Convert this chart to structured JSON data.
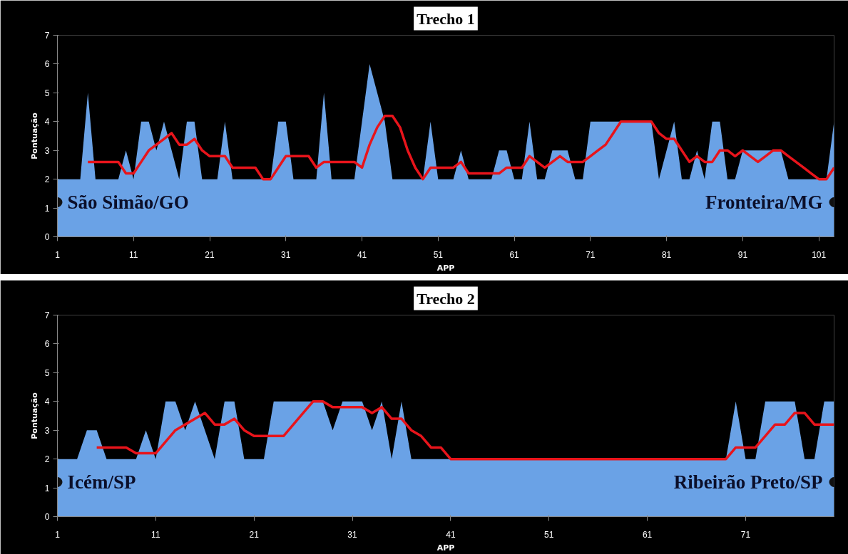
{
  "chart_data": [
    {
      "type": "area",
      "title": "Trecho 1",
      "xlabel": "APP",
      "ylabel": "Pontuação",
      "xlim": [
        1,
        103
      ],
      "xticks": [
        1,
        11,
        21,
        31,
        41,
        51,
        61,
        71,
        81,
        91,
        101
      ],
      "ylim": [
        0,
        7
      ],
      "yticks": [
        0,
        1,
        2,
        3,
        4,
        5,
        6,
        7
      ],
      "grid": false,
      "x": [
        1,
        2,
        3,
        4,
        5,
        6,
        7,
        8,
        9,
        10,
        11,
        12,
        13,
        14,
        15,
        16,
        17,
        18,
        19,
        20,
        21,
        22,
        23,
        24,
        25,
        26,
        27,
        28,
        29,
        30,
        31,
        32,
        33,
        34,
        35,
        36,
        37,
        38,
        39,
        40,
        41,
        42,
        43,
        44,
        45,
        46,
        47,
        48,
        49,
        50,
        51,
        52,
        53,
        54,
        55,
        56,
        57,
        58,
        59,
        60,
        61,
        62,
        63,
        64,
        65,
        66,
        67,
        68,
        69,
        70,
        71,
        72,
        73,
        74,
        75,
        76,
        77,
        78,
        79,
        80,
        81,
        82,
        83,
        84,
        85,
        86,
        87,
        88,
        89,
        90,
        91,
        92,
        93,
        94,
        95,
        96,
        97,
        98,
        99,
        100,
        101,
        102,
        103
      ],
      "series": [
        {
          "color": "#6aa2e6",
          "values": [
            2,
            2,
            2,
            2,
            5,
            2,
            2,
            2,
            2,
            3,
            2,
            4,
            4,
            3,
            4,
            3,
            2,
            4,
            4,
            2,
            2,
            2,
            4,
            2,
            2,
            2,
            2,
            2,
            2,
            4,
            4,
            2,
            2,
            2,
            2,
            5,
            2,
            2,
            2,
            2,
            4,
            6,
            5,
            4,
            2,
            2,
            2,
            2,
            2,
            4,
            2,
            2,
            2,
            3,
            2,
            2,
            2,
            2,
            3,
            3,
            2,
            2,
            4,
            2,
            2,
            3,
            3,
            3,
            2,
            2,
            4,
            4,
            4,
            4,
            4,
            4,
            4,
            4,
            4,
            2,
            3,
            4,
            2,
            2,
            3,
            2,
            4,
            4,
            2,
            2,
            3,
            3,
            3,
            3,
            3,
            3,
            2,
            2,
            2,
            2,
            2,
            2,
            4
          ]
        },
        {
          "type": "line",
          "color": "#e8141b",
          "values": [
            null,
            null,
            null,
            null,
            2.6,
            2.6,
            2.6,
            2.6,
            2.6,
            2.2,
            2.2,
            2.6,
            3.0,
            3.2,
            3.4,
            3.6,
            3.2,
            3.2,
            3.4,
            3.0,
            2.8,
            2.8,
            2.8,
            2.4,
            2.4,
            2.4,
            2.4,
            2.0,
            2.0,
            2.4,
            2.8,
            2.8,
            2.8,
            2.8,
            2.4,
            2.6,
            2.6,
            2.6,
            2.6,
            2.6,
            2.4,
            3.2,
            3.8,
            4.2,
            4.2,
            3.8,
            3.0,
            2.4,
            2.0,
            2.4,
            2.4,
            2.4,
            2.4,
            2.6,
            2.2,
            2.2,
            2.2,
            2.2,
            2.2,
            2.4,
            2.4,
            2.4,
            2.8,
            2.6,
            2.4,
            2.6,
            2.8,
            2.6,
            2.6,
            2.6,
            2.8,
            3.0,
            3.2,
            3.6,
            4.0,
            4.0,
            4.0,
            4.0,
            4.0,
            3.6,
            3.4,
            3.4,
            3.0,
            2.6,
            2.8,
            2.6,
            2.6,
            3.0,
            3.0,
            2.8,
            3.0,
            2.8,
            2.6,
            2.8,
            3.0,
            3.0,
            2.8,
            2.6,
            2.4,
            2.2,
            2.0,
            2.0,
            2.4
          ]
        }
      ],
      "annotations": [
        {
          "text": "São Simão/GO",
          "x": 1,
          "y": 1.2
        },
        {
          "text": "Fronteira/MG",
          "x": 103,
          "y": 1.2
        }
      ]
    },
    {
      "type": "area",
      "title": "Trecho 2",
      "xlabel": "APP",
      "ylabel": "Pontuação",
      "xlim": [
        1,
        80
      ],
      "xticks": [
        1,
        11,
        21,
        31,
        41,
        51,
        61,
        71
      ],
      "ylim": [
        0,
        7
      ],
      "yticks": [
        0,
        1,
        2,
        3,
        4,
        5,
        6,
        7
      ],
      "grid": false,
      "x": [
        1,
        2,
        3,
        4,
        5,
        6,
        7,
        8,
        9,
        10,
        11,
        12,
        13,
        14,
        15,
        16,
        17,
        18,
        19,
        20,
        21,
        22,
        23,
        24,
        25,
        26,
        27,
        28,
        29,
        30,
        31,
        32,
        33,
        34,
        35,
        36,
        37,
        38,
        39,
        40,
        41,
        42,
        43,
        44,
        45,
        46,
        47,
        48,
        49,
        50,
        51,
        52,
        53,
        54,
        55,
        56,
        57,
        58,
        59,
        60,
        61,
        62,
        63,
        64,
        65,
        66,
        67,
        68,
        69,
        70,
        71,
        72,
        73,
        74,
        75,
        76,
        77,
        78,
        79,
        80
      ],
      "series": [
        {
          "color": "#6aa2e6",
          "values": [
            2,
            2,
            2,
            3,
            3,
            2,
            2,
            2,
            2,
            3,
            2,
            4,
            4,
            3,
            4,
            3,
            2,
            4,
            4,
            2,
            2,
            2,
            4,
            4,
            4,
            4,
            4,
            4,
            3,
            4,
            4,
            4,
            3,
            4,
            2,
            4,
            2,
            2,
            2,
            2,
            2,
            2,
            2,
            2,
            2,
            2,
            2,
            2,
            2,
            2,
            2,
            2,
            2,
            2,
            2,
            2,
            2,
            2,
            2,
            2,
            2,
            2,
            2,
            2,
            2,
            2,
            2,
            2,
            2,
            4,
            2,
            2,
            4,
            4,
            4,
            4,
            2,
            2,
            4,
            4
          ]
        },
        {
          "type": "line",
          "color": "#e8141b",
          "values": [
            null,
            null,
            null,
            null,
            2.4,
            2.4,
            2.4,
            2.4,
            2.2,
            2.2,
            2.2,
            2.6,
            3.0,
            3.2,
            3.4,
            3.6,
            3.2,
            3.2,
            3.4,
            3.0,
            2.8,
            2.8,
            2.8,
            2.8,
            3.2,
            3.6,
            4.0,
            4.0,
            3.8,
            3.8,
            3.8,
            3.8,
            3.6,
            3.8,
            3.4,
            3.4,
            3.0,
            2.8,
            2.4,
            2.4,
            2.0,
            2.0,
            2.0,
            2.0,
            2.0,
            2.0,
            2.0,
            2.0,
            2.0,
            2.0,
            2.0,
            2.0,
            2.0,
            2.0,
            2.0,
            2.0,
            2.0,
            2.0,
            2.0,
            2.0,
            2.0,
            2.0,
            2.0,
            2.0,
            2.0,
            2.0,
            2.0,
            2.0,
            2.0,
            2.4,
            2.4,
            2.4,
            2.8,
            3.2,
            3.2,
            3.6,
            3.6,
            3.2,
            3.2,
            3.2
          ]
        }
      ],
      "annotations": [
        {
          "text": "Icém/SP",
          "x": 1,
          "y": 1.2
        },
        {
          "text": "Ribeirão Preto/SP",
          "x": 80,
          "y": 1.2
        }
      ]
    }
  ]
}
